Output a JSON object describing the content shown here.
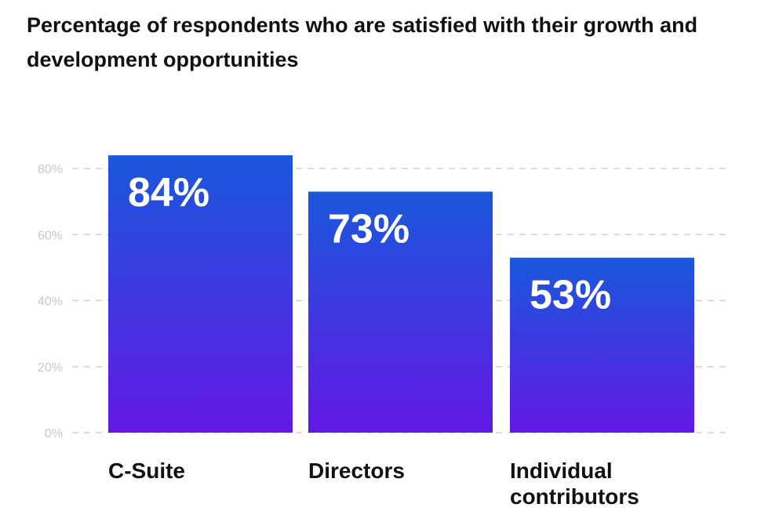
{
  "chart_data": {
    "type": "bar",
    "title": "Percentage of respondents who are satisfied with their growth and development opportunities",
    "categories": [
      "C-Suite",
      "Directors",
      "Individual contributors"
    ],
    "category_lines": [
      [
        "C-Suite"
      ],
      [
        "Directors"
      ],
      [
        "Individual",
        "contributors"
      ]
    ],
    "values": [
      84,
      73,
      53
    ],
    "data_labels": [
      "84%",
      "73%",
      "53%"
    ],
    "xlabel": "",
    "ylabel": "",
    "ylim": [
      0,
      80
    ],
    "yticks": [
      0,
      20,
      40,
      60,
      80
    ],
    "ytick_labels": [
      "0%",
      "20%",
      "40%",
      "60%",
      "80%"
    ],
    "grid": "dashed horizontal",
    "colors": {
      "gradient_top": "#1a58dc",
      "gradient_bottom": "#6318e4",
      "grid": "#d0d0d0"
    }
  }
}
